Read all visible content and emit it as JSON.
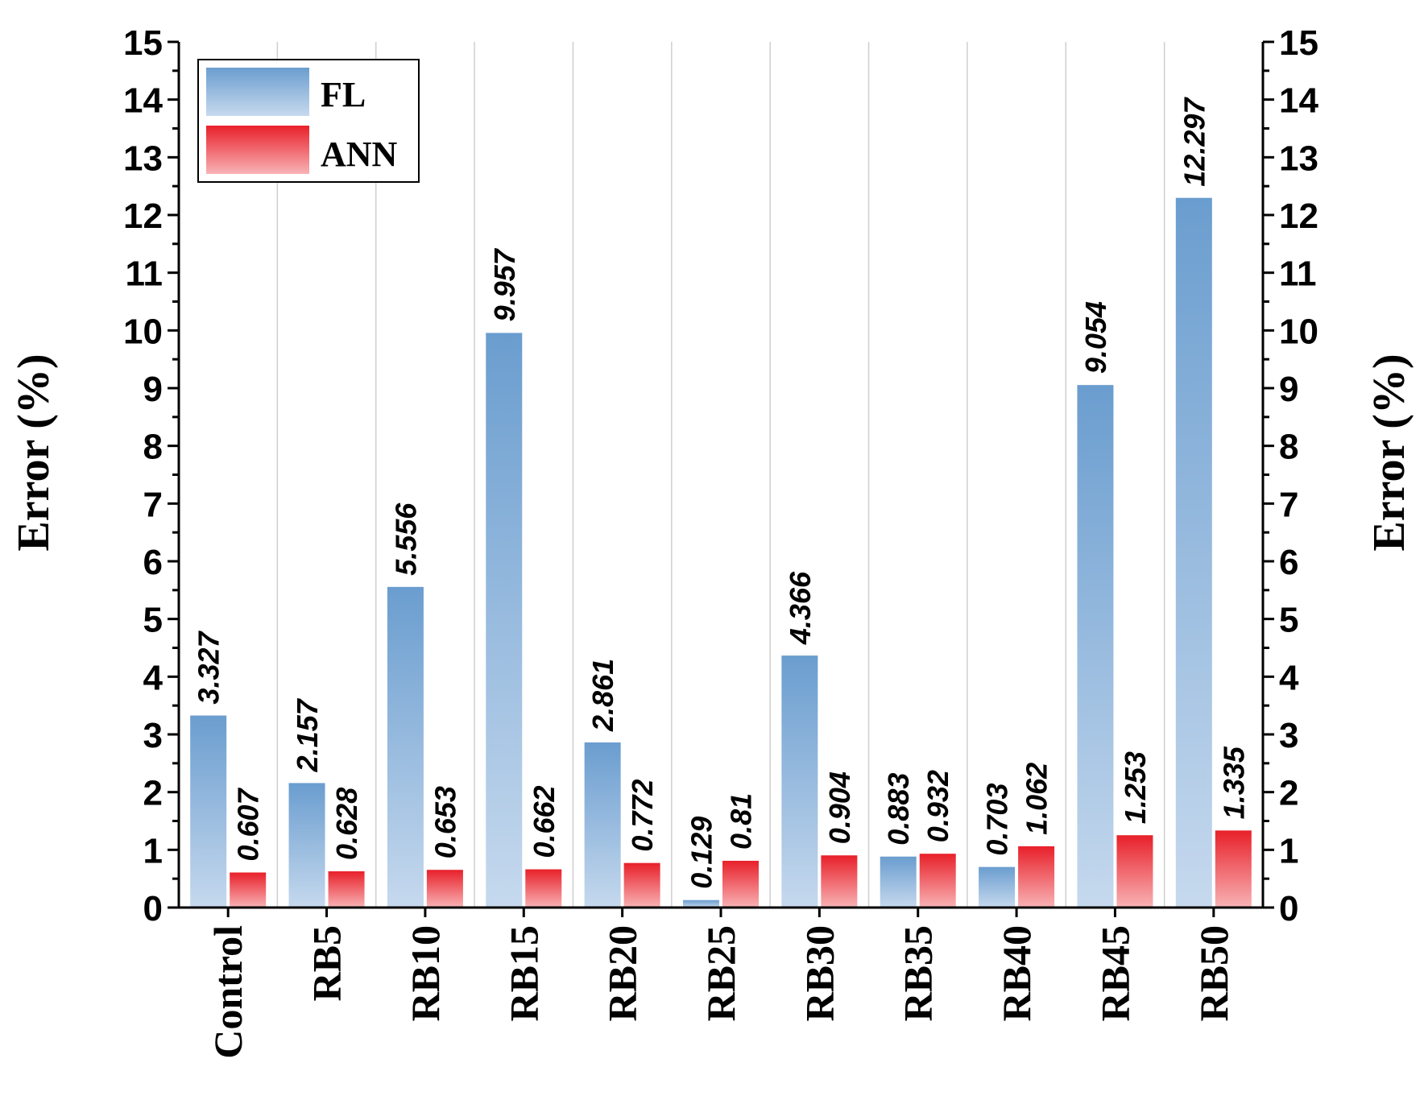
{
  "chart_data": {
    "type": "bar",
    "categories": [
      "Control",
      "RB5",
      "RB10",
      "RB15",
      "RB20",
      "RB25",
      "RB30",
      "RB35",
      "RB40",
      "RB45",
      "RB50"
    ],
    "series": [
      {
        "name": "FL",
        "values": [
          3.327,
          2.157,
          5.556,
          9.957,
          2.861,
          0.129,
          4.366,
          0.883,
          0.703,
          9.054,
          12.297
        ],
        "labels": [
          "3.327",
          "2.157",
          "5.556",
          "9.957",
          "2.861",
          "0.129",
          "4.366",
          "0.883",
          "0.703",
          "9.054",
          "12.297"
        ],
        "color_top": "#6a9dcf",
        "color_bottom": "#c6d9ee"
      },
      {
        "name": "ANN",
        "values": [
          0.607,
          0.628,
          0.653,
          0.662,
          0.772,
          0.81,
          0.904,
          0.932,
          1.062,
          1.253,
          1.335
        ],
        "labels": [
          "0.607",
          "0.628",
          "0.653",
          "0.662",
          "0.772",
          "0.81",
          "0.904",
          "0.932",
          "1.062",
          "1.253",
          "1.335"
        ],
        "color_top": "#e8202a",
        "color_bottom": "#f8b3b5"
      }
    ],
    "ylabel_left": "Error (%)",
    "ylabel_right": "Error (%)",
    "xlabel": "",
    "ylim": [
      0,
      15
    ],
    "yticks": [
      "0",
      "1",
      "2",
      "3",
      "4",
      "5",
      "6",
      "7",
      "8",
      "9",
      "10",
      "11",
      "12",
      "13",
      "14",
      "15"
    ],
    "grid": "vertical",
    "legend_position": "top-left"
  }
}
